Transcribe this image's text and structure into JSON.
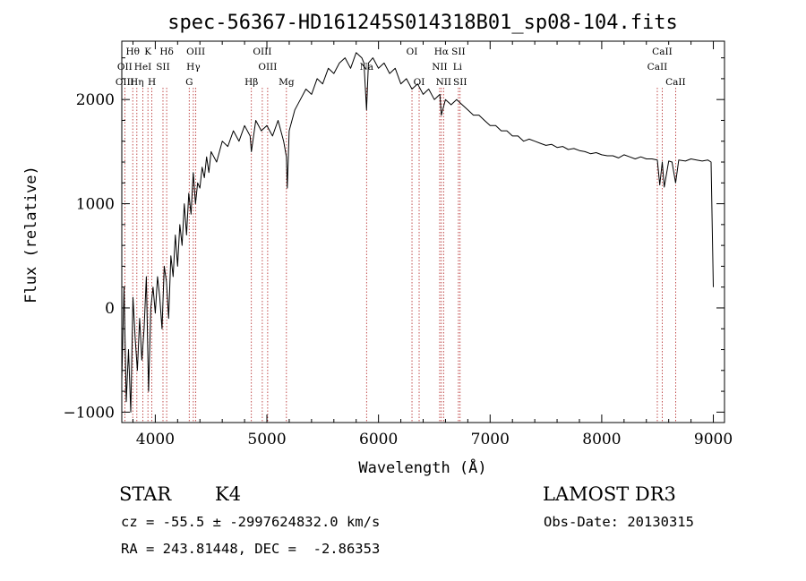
{
  "chart_data": {
    "type": "line",
    "title": "spec-56367-HD161245S014318B01_sp08-104.fits",
    "xlabel": "Wavelength (Å)",
    "ylabel": "Flux (relative)",
    "xlim": [
      3700,
      9100
    ],
    "ylim": [
      -1100,
      2560
    ],
    "xticks": [
      4000,
      5000,
      6000,
      7000,
      8000,
      9000
    ],
    "yticks": [
      -1000,
      0,
      1000,
      2000
    ],
    "grid": false,
    "series": [
      {
        "name": "flux",
        "x": [
          3700,
          3720,
          3740,
          3760,
          3780,
          3800,
          3820,
          3840,
          3860,
          3880,
          3900,
          3920,
          3940,
          3960,
          3980,
          4000,
          4020,
          4040,
          4060,
          4080,
          4100,
          4120,
          4140,
          4160,
          4180,
          4200,
          4220,
          4240,
          4260,
          4280,
          4300,
          4320,
          4340,
          4360,
          4380,
          4400,
          4420,
          4440,
          4460,
          4480,
          4500,
          4550,
          4600,
          4650,
          4700,
          4750,
          4800,
          4850,
          4861,
          4900,
          4950,
          5000,
          5050,
          5100,
          5150,
          5175,
          5183,
          5200,
          5250,
          5300,
          5350,
          5400,
          5450,
          5500,
          5550,
          5600,
          5650,
          5700,
          5750,
          5800,
          5850,
          5870,
          5893,
          5910,
          5950,
          6000,
          6050,
          6100,
          6150,
          6200,
          6250,
          6300,
          6350,
          6400,
          6450,
          6500,
          6550,
          6563,
          6600,
          6650,
          6700,
          6750,
          6800,
          6850,
          6900,
          6950,
          7000,
          7050,
          7100,
          7150,
          7200,
          7250,
          7300,
          7350,
          7400,
          7450,
          7500,
          7550,
          7600,
          7650,
          7700,
          7750,
          7800,
          7850,
          7900,
          7950,
          8000,
          8050,
          8100,
          8150,
          8200,
          8250,
          8300,
          8350,
          8400,
          8450,
          8498,
          8520,
          8542,
          8560,
          8600,
          8630,
          8662,
          8690,
          8750,
          8800,
          8850,
          8900,
          8950,
          8980,
          9000
        ],
        "values": [
          -700,
          200,
          -900,
          -400,
          -1000,
          100,
          -300,
          -600,
          -100,
          -500,
          -200,
          300,
          -800,
          0,
          200,
          -50,
          300,
          100,
          -200,
          400,
          250,
          -100,
          500,
          300,
          700,
          400,
          800,
          600,
          1000,
          700,
          1100,
          900,
          1300,
          1000,
          1200,
          1150,
          1350,
          1250,
          1450,
          1300,
          1500,
          1400,
          1600,
          1550,
          1700,
          1600,
          1750,
          1650,
          1500,
          1800,
          1700,
          1750,
          1650,
          1800,
          1600,
          1450,
          1150,
          1700,
          1900,
          2000,
          2100,
          2050,
          2200,
          2150,
          2300,
          2250,
          2350,
          2400,
          2300,
          2450,
          2400,
          2350,
          1900,
          2350,
          2400,
          2300,
          2350,
          2250,
          2300,
          2150,
          2200,
          2100,
          2150,
          2050,
          2100,
          2000,
          2050,
          1850,
          2000,
          1950,
          2000,
          1950,
          1900,
          1850,
          1850,
          1800,
          1750,
          1750,
          1700,
          1700,
          1650,
          1650,
          1600,
          1620,
          1600,
          1580,
          1560,
          1570,
          1540,
          1550,
          1520,
          1530,
          1510,
          1500,
          1480,
          1490,
          1470,
          1460,
          1460,
          1440,
          1470,
          1450,
          1430,
          1450,
          1430,
          1430,
          1420,
          1180,
          1400,
          1160,
          1410,
          1400,
          1200,
          1420,
          1410,
          1430,
          1420,
          1410,
          1420,
          1400,
          200
        ]
      }
    ],
    "spectral_lines": [
      {
        "label": "Hθ",
        "x": 3798,
        "row": 0
      },
      {
        "label": "OII",
        "x": 3727,
        "row": 1
      },
      {
        "label": "OIII",
        "x": 3727,
        "row": 2
      },
      {
        "label": "K",
        "x": 3934,
        "row": 0
      },
      {
        "label": "HeI",
        "x": 3889,
        "row": 1
      },
      {
        "label": "Hη",
        "x": 3835,
        "row": 2
      },
      {
        "label": "Hδ",
        "x": 4102,
        "row": 0
      },
      {
        "label": "SII",
        "x": 4069,
        "row": 1
      },
      {
        "label": "H",
        "x": 3969,
        "row": 2
      },
      {
        "label": "OIII",
        "x": 4363,
        "row": 0
      },
      {
        "label": "Hγ",
        "x": 4341,
        "row": 1
      },
      {
        "label": "G",
        "x": 4304,
        "row": 2
      },
      {
        "label": "Hβ",
        "x": 4861,
        "row": 2
      },
      {
        "label": "OIII",
        "x": 4959,
        "row": 0
      },
      {
        "label": "OIII",
        "x": 5007,
        "row": 1
      },
      {
        "label": "Mg",
        "x": 5175,
        "row": 2
      },
      {
        "label": "Na",
        "x": 5893,
        "row": 1
      },
      {
        "label": "OI",
        "x": 6300,
        "row": 0
      },
      {
        "label": "OI",
        "x": 6364,
        "row": 2
      },
      {
        "label": "Hα",
        "x": 6563,
        "row": 0
      },
      {
        "label": "SII",
        "x": 6716,
        "row": 0
      },
      {
        "label": "NII",
        "x": 6548,
        "row": 1
      },
      {
        "label": "Li",
        "x": 6708,
        "row": 1
      },
      {
        "label": "NII",
        "x": 6583,
        "row": 2
      },
      {
        "label": "SII",
        "x": 6731,
        "row": 2
      },
      {
        "label": "CaII",
        "x": 8542,
        "row": 0
      },
      {
        "label": "CaII",
        "x": 8498,
        "row": 1
      },
      {
        "label": "CaII",
        "x": 8662,
        "row": 2
      }
    ],
    "line_marks": [
      3727,
      3798,
      3835,
      3889,
      3934,
      3969,
      4069,
      4102,
      4304,
      4341,
      4363,
      4861,
      4959,
      5007,
      5175,
      5893,
      6300,
      6364,
      6548,
      6563,
      6583,
      6716,
      6731,
      8498,
      8542,
      8662
    ],
    "colors": {
      "trace": "#000000",
      "line_marker": "#b22222"
    }
  },
  "info": {
    "class_label": "STAR",
    "subclass": "K4",
    "survey": "LAMOST DR3",
    "cz": "cz = -55.5 ± -2997624832.0 km/s",
    "obs_date": "Obs-Date: 20130315",
    "coords": "RA = 243.81448, DEC =  -2.86353"
  }
}
